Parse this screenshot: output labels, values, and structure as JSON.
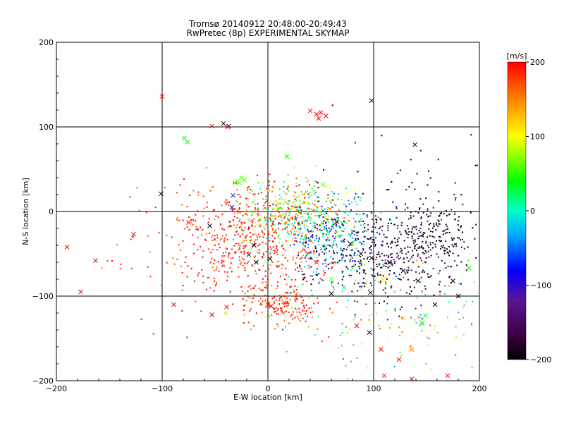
{
  "chart_data": {
    "type": "scatter",
    "title": "Tromsø 20140912 20:48:00-20:49:43",
    "subtitle": "RwPretec (8p) EXPERIMENTAL SKYMAP",
    "xlabel": "E-W location [km]",
    "ylabel": "N-S location [km]",
    "xlim": [
      -200,
      200
    ],
    "ylim": [
      -200,
      200
    ],
    "xticks": [
      "-200",
      "-100",
      "0",
      "100",
      "200"
    ],
    "yticks": [
      "-200",
      "-100",
      "0",
      "100",
      "200"
    ],
    "grid": true,
    "colorbar": {
      "label": "[m/s]",
      "range": [
        -200,
        200
      ],
      "ticks": [
        "200",
        "100",
        "0",
        "-100",
        "-200"
      ],
      "colormap": "black-purple-blue-cyan-green-yellow-red"
    },
    "crosses": [
      {
        "x": -100,
        "y": 136,
        "v": 200
      },
      {
        "x": -190,
        "y": -42,
        "v": 200
      },
      {
        "x": -177,
        "y": -95,
        "v": 200
      },
      {
        "x": -163,
        "y": -58,
        "v": 200
      },
      {
        "x": -127,
        "y": -27,
        "v": 200
      },
      {
        "x": -101,
        "y": 21,
        "v": -200
      },
      {
        "x": -89,
        "y": -110,
        "v": 200
      },
      {
        "x": -75,
        "y": -13,
        "v": 200
      },
      {
        "x": -79,
        "y": 87,
        "v": 40
      },
      {
        "x": -76,
        "y": 82,
        "v": 40
      },
      {
        "x": -53,
        "y": 101,
        "v": 200
      },
      {
        "x": -42,
        "y": 104,
        "v": -200
      },
      {
        "x": -37,
        "y": 101,
        "v": -200
      },
      {
        "x": -38,
        "y": 100,
        "v": 200
      },
      {
        "x": -39,
        "y": -113,
        "v": 200
      },
      {
        "x": -31,
        "y": 34,
        "v": 60
      },
      {
        "x": -29,
        "y": 36,
        "v": 60
      },
      {
        "x": -27,
        "y": 34,
        "v": 60
      },
      {
        "x": -25,
        "y": 40,
        "v": 60
      },
      {
        "x": -22,
        "y": 37,
        "v": 60
      },
      {
        "x": -33,
        "y": 19,
        "v": -100
      },
      {
        "x": -34,
        "y": 5,
        "v": -90
      },
      {
        "x": -53,
        "y": -122,
        "v": 200
      },
      {
        "x": -40,
        "y": -120,
        "v": 80
      },
      {
        "x": -55,
        "y": -17,
        "v": -200
      },
      {
        "x": -13,
        "y": -40,
        "v": -200
      },
      {
        "x": -18,
        "y": -51,
        "v": -200
      },
      {
        "x": -11,
        "y": -60,
        "v": -200
      },
      {
        "x": 2,
        "y": -56,
        "v": -200
      },
      {
        "x": 0,
        "y": -110,
        "v": 200
      },
      {
        "x": 3,
        "y": -112,
        "v": 200
      },
      {
        "x": 18,
        "y": 65,
        "v": 40
      },
      {
        "x": 40,
        "y": 119,
        "v": 200
      },
      {
        "x": 46,
        "y": 115,
        "v": 200
      },
      {
        "x": 48,
        "y": 110,
        "v": 200
      },
      {
        "x": 50,
        "y": 117,
        "v": 200
      },
      {
        "x": 55,
        "y": 113,
        "v": 200
      },
      {
        "x": 98,
        "y": 131,
        "v": -200
      },
      {
        "x": 139,
        "y": 79,
        "v": -200
      },
      {
        "x": 65,
        "y": -12,
        "v": -200
      },
      {
        "x": 78,
        "y": -38,
        "v": -200
      },
      {
        "x": 88,
        "y": -50,
        "v": -200
      },
      {
        "x": 98,
        "y": -55,
        "v": -200
      },
      {
        "x": 115,
        "y": -60,
        "v": -200
      },
      {
        "x": 128,
        "y": -70,
        "v": -200
      },
      {
        "x": 142,
        "y": -82,
        "v": -200
      },
      {
        "x": 158,
        "y": -110,
        "v": -200
      },
      {
        "x": 175,
        "y": -82,
        "v": -200
      },
      {
        "x": 180,
        "y": -100,
        "v": -200
      },
      {
        "x": 97,
        "y": -96,
        "v": -200
      },
      {
        "x": 96,
        "y": -143,
        "v": -200
      },
      {
        "x": 84,
        "y": -135,
        "v": 200
      },
      {
        "x": 107,
        "y": -163,
        "v": 200
      },
      {
        "x": 110,
        "y": -194,
        "v": 200
      },
      {
        "x": 124,
        "y": -175,
        "v": 200
      },
      {
        "x": 136,
        "y": -198,
        "v": 200
      },
      {
        "x": 170,
        "y": -194,
        "v": 200
      },
      {
        "x": 136,
        "y": -163,
        "v": 155
      },
      {
        "x": 128,
        "y": -126,
        "v": 120
      },
      {
        "x": 146,
        "y": -132,
        "v": 40
      },
      {
        "x": 149,
        "y": -123,
        "v": 40
      },
      {
        "x": 190,
        "y": -67,
        "v": 40
      },
      {
        "x": 46,
        "y": -60,
        "v": 200
      },
      {
        "x": 72,
        "y": -90,
        "v": -10
      },
      {
        "x": 60,
        "y": -80,
        "v": 70
      },
      {
        "x": 109,
        "y": -80,
        "v": 110
      },
      {
        "x": 52,
        "y": 32,
        "v": 60
      },
      {
        "x": 60,
        "y": -97,
        "v": -200
      }
    ]
  }
}
